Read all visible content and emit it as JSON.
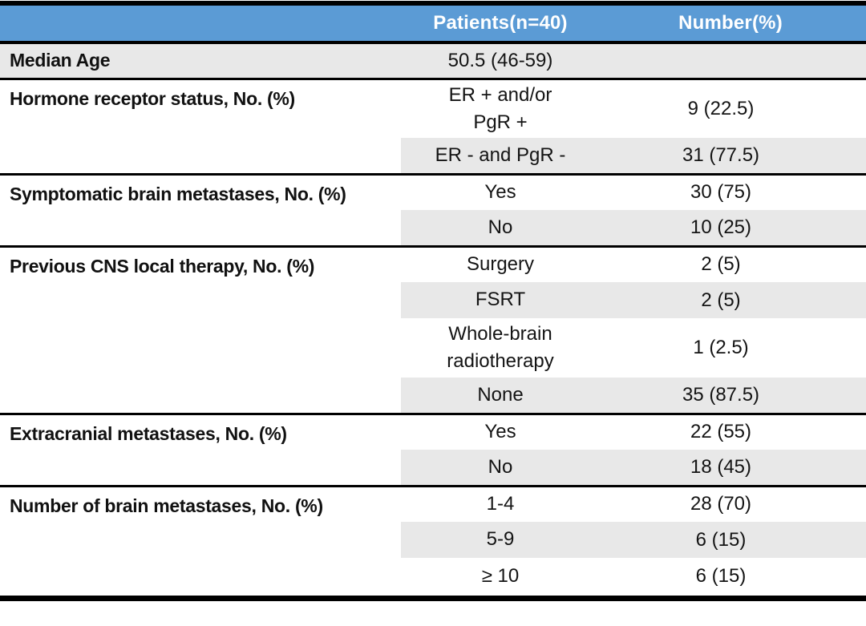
{
  "table": {
    "header": {
      "col1": "",
      "col2": "Patients(n=40)",
      "col3": "Number(%)"
    },
    "sections": [
      {
        "label": "Median Age",
        "rows": [
          {
            "value": "50.5 (46-59)",
            "number": ""
          }
        ]
      },
      {
        "label": "Hormone receptor status, No. (%)",
        "rows": [
          {
            "value": "ER + and/or\nPgR +",
            "number": "9 (22.5)"
          },
          {
            "value": "ER - and PgR -",
            "number": "31 (77.5)"
          }
        ]
      },
      {
        "label": "Symptomatic brain metastases, No. (%)",
        "rows": [
          {
            "value": "Yes",
            "number": "30 (75)"
          },
          {
            "value": "No",
            "number": "10 (25)"
          }
        ]
      },
      {
        "label": "Previous CNS local therapy, No. (%)",
        "rows": [
          {
            "value": "Surgery",
            "number": "2 (5)"
          },
          {
            "value": "FSRT",
            "number": "2 (5)"
          },
          {
            "value": "Whole-brain\nradiotherapy",
            "number": "1 (2.5)"
          },
          {
            "value": "None",
            "number": "35 (87.5)"
          }
        ]
      },
      {
        "label": "Extracranial metastases, No. (%)",
        "rows": [
          {
            "value": "Yes",
            "number": "22 (55)"
          },
          {
            "value": "No",
            "number": "18 (45)"
          }
        ]
      },
      {
        "label": "Number of brain metastases, No. (%)",
        "rows": [
          {
            "value": "1-4",
            "number": "28 (70)"
          },
          {
            "value": "5-9",
            "number": "6 (15)"
          },
          {
            "value": "≥ 10",
            "number": "6 (15)"
          }
        ]
      }
    ],
    "colors": {
      "header_bg": "#5b9bd5",
      "header_text": "#ffffff",
      "row_shade": "#e8e8e8",
      "rule": "#000000"
    }
  }
}
